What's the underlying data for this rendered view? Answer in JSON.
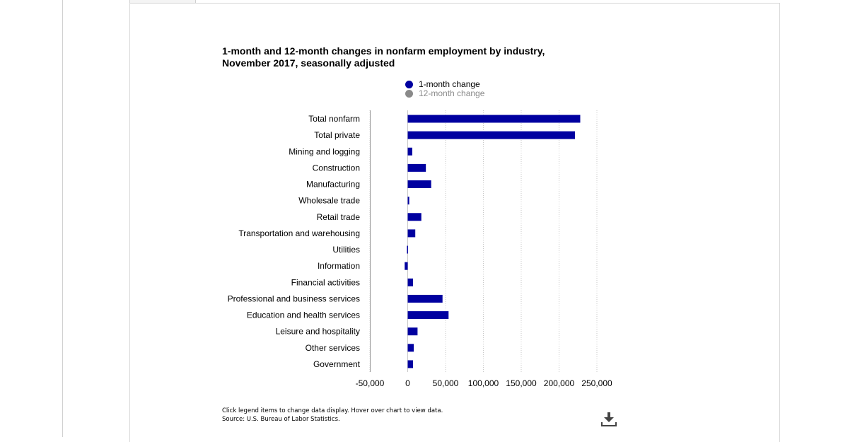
{
  "chart_data": {
    "type": "bar",
    "orientation": "horizontal",
    "title": "1-month and 12-month changes in nonfarm employment by industry, November 2017, seasonally adjusted",
    "categories": [
      "Total nonfarm",
      "Total private",
      "Mining and logging",
      "Construction",
      "Manufacturing",
      "Wholesale trade",
      "Retail trade",
      "Transportation and warehousing",
      "Utilities",
      "Information",
      "Financial activities",
      "Professional and business services",
      "Education and health services",
      "Leisure and hospitality",
      "Other services",
      "Government"
    ],
    "series": [
      {
        "name": "1-month change",
        "color": "#0000a0",
        "visible": true,
        "values": [
          228000,
          221000,
          6000,
          24000,
          31000,
          2000,
          18000,
          10000,
          -1000,
          -4000,
          7000,
          46000,
          54000,
          13000,
          8000,
          7000
        ]
      },
      {
        "name": "12-month change",
        "color": "#888888",
        "visible": false
      }
    ],
    "xlim": [
      -50000,
      250000
    ],
    "xticks": [
      -50000,
      0,
      50000,
      100000,
      150000,
      200000,
      250000
    ],
    "xtick_labels": [
      "-50,000",
      "0",
      "50,000",
      "100,000",
      "150,000",
      "200,000",
      "250,000"
    ],
    "xlabel": "",
    "ylabel": "",
    "grid": "vertical dotted",
    "legend_position": "top-center"
  },
  "footnote": {
    "line1": "Click legend items to change data display. Hover over chart to view data.",
    "line2": "Source: U.S. Bureau of Labor Statistics."
  },
  "icons": {
    "download": "download-icon"
  }
}
